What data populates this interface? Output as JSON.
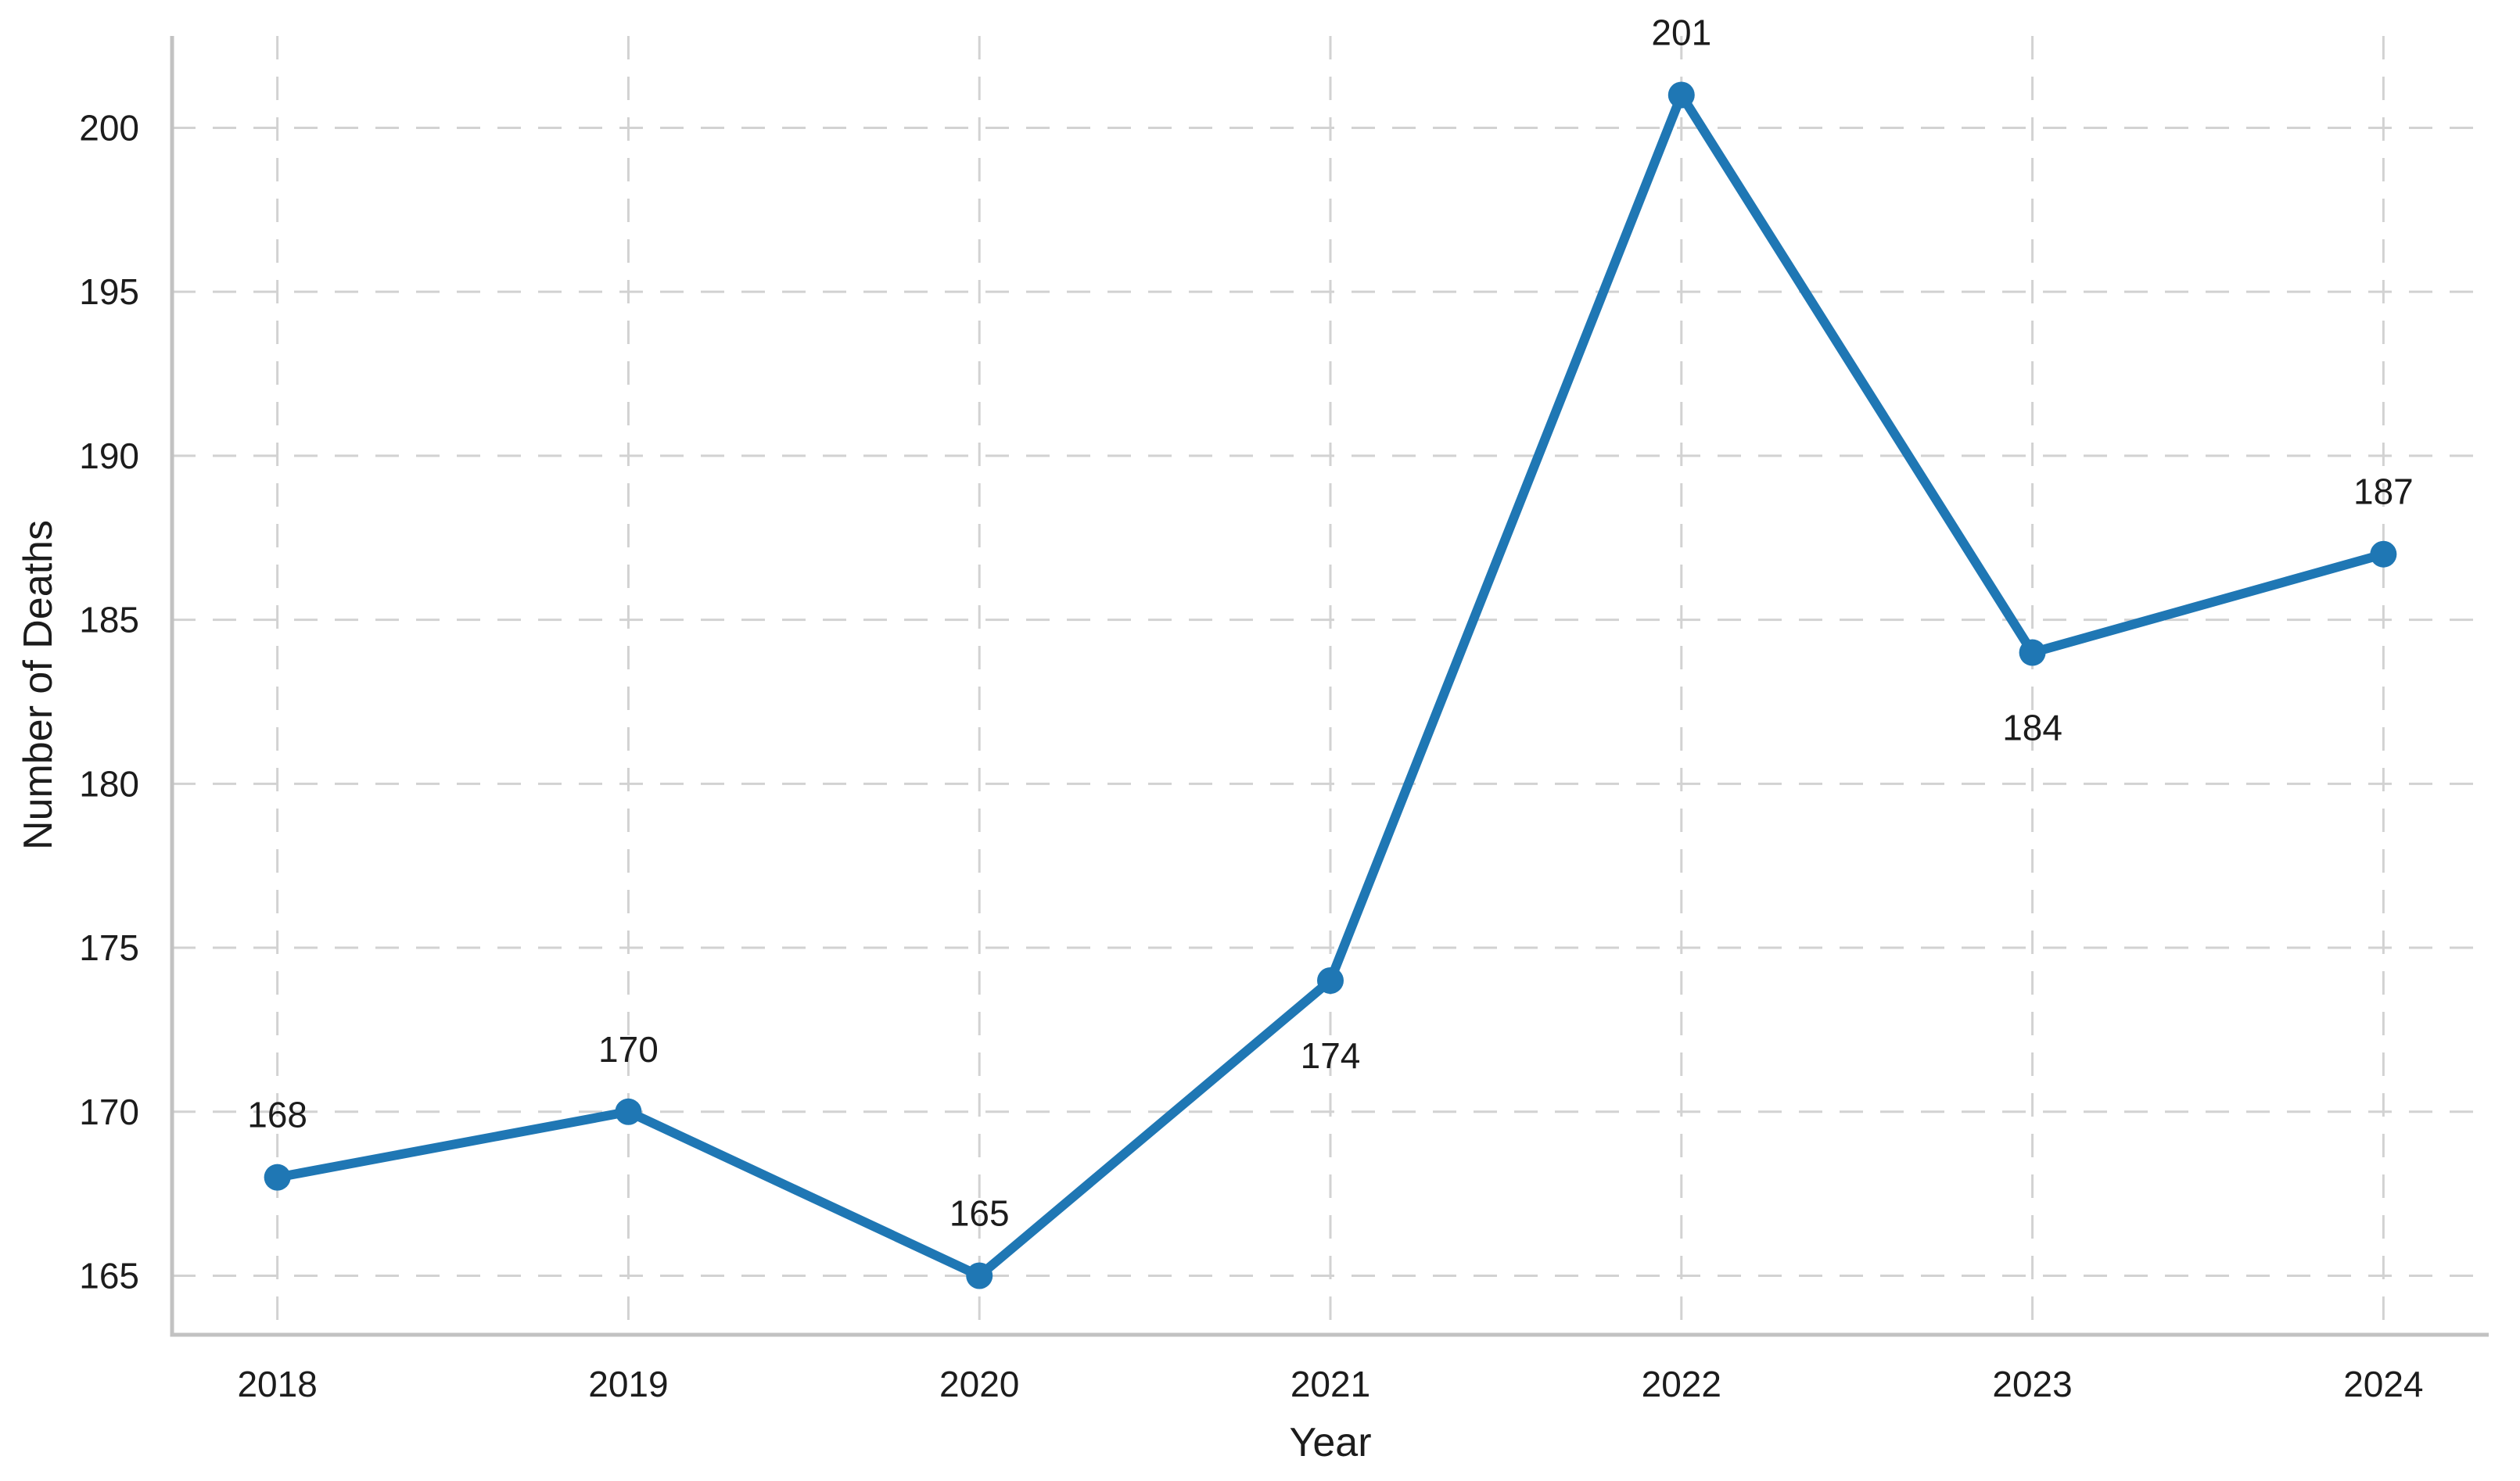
{
  "chart_data": {
    "type": "line",
    "title": "",
    "xlabel": "Year",
    "ylabel": "Number of Deaths",
    "categories": [
      "2018",
      "2019",
      "2020",
      "2021",
      "2022",
      "2023",
      "2024"
    ],
    "x": [
      2018,
      2019,
      2020,
      2021,
      2022,
      2023,
      2024
    ],
    "values": [
      168,
      170,
      165,
      174,
      201,
      184,
      187
    ],
    "data_labels": [
      "168",
      "170",
      "165",
      "174",
      "201",
      "184",
      "187"
    ],
    "data_label_position": [
      "above",
      "above",
      "above",
      "below",
      "above",
      "below",
      "above"
    ],
    "yticks": [
      165,
      170,
      175,
      180,
      185,
      190,
      195,
      200
    ],
    "ytick_labels": [
      "165",
      "170",
      "175",
      "180",
      "185",
      "190",
      "195",
      "200"
    ],
    "ylim": [
      163.2,
      202.8
    ],
    "xlim": [
      2017.7,
      2024.3
    ],
    "grid": "dashed-both",
    "legend": "none",
    "marker": "circle"
  },
  "style": {
    "line_color": "#1f77b4",
    "marker_color": "#1f77b4",
    "grid_color": "#d2d2d2",
    "spine_color": "#c2c2c2",
    "text_color": "#1c1c1c",
    "background_color": "#ffffff"
  }
}
